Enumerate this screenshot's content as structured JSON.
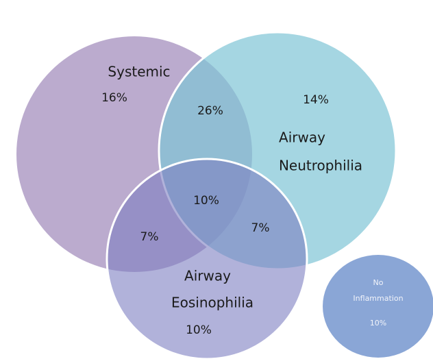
{
  "sets": [
    {
      "label_lines": [
        "Systemic"
      ],
      "value": "16%"
    },
    {
      "label_lines": [
        "Airway",
        "Neutrophilia"
      ],
      "value": "14%"
    },
    {
      "label_lines": [
        "Airway",
        "Eosinophilia"
      ],
      "value": "10%"
    }
  ],
  "overlaps": {
    "systemic_neutrophilia": "26%",
    "all_three": "10%",
    "systemic_eosinophilia": "7%",
    "neutrophilia_eosinophilia": "7%"
  },
  "no_inflammation": {
    "label_lines": [
      "No",
      "Inflammation"
    ],
    "value": "10%"
  }
}
